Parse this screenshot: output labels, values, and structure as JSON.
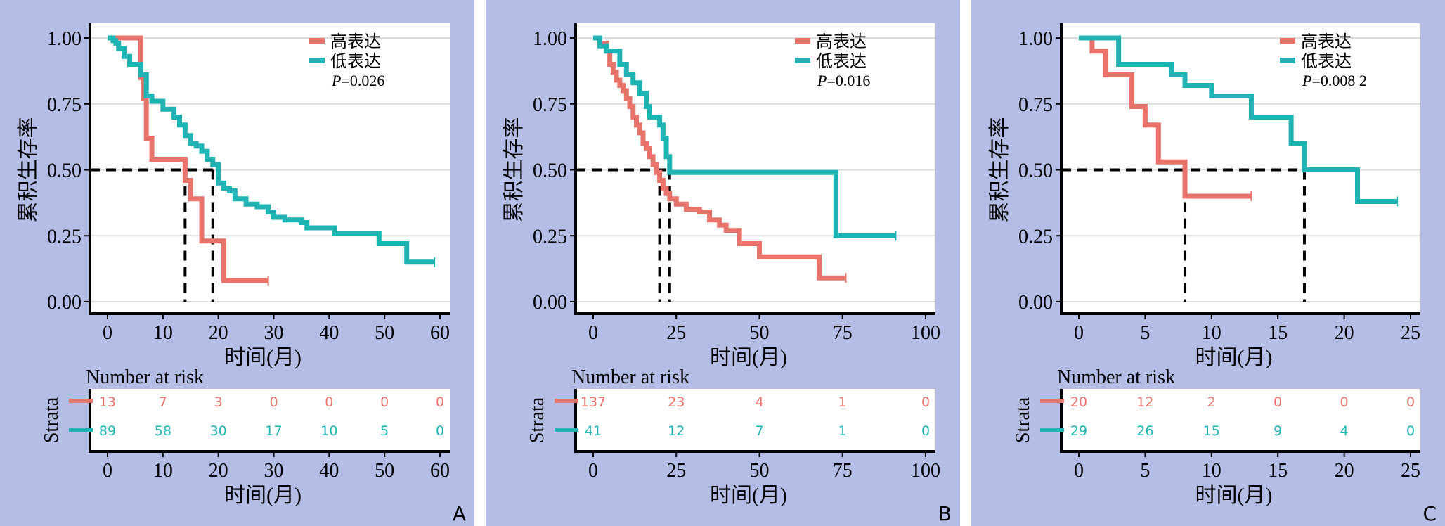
{
  "chart_data": [
    {
      "type": "line",
      "panel_label": "A",
      "ylabel": "累积生存率",
      "xlabel": "时间(月)",
      "xlim": [
        0,
        60
      ],
      "ylim": [
        0,
        1
      ],
      "xticks": [
        0,
        10,
        20,
        30,
        40,
        50,
        60
      ],
      "yticks": [
        "0.00",
        "0.25",
        "0.50",
        "0.75",
        "1.00"
      ],
      "legend": [
        "高表达",
        "低表达"
      ],
      "pvalue_prefix": "P",
      "pvalue_text": "=0.026",
      "median_lines": [
        14,
        19
      ],
      "series": [
        {
          "name": "高表达",
          "color": "#e8736b",
          "points": [
            [
              0,
              1
            ],
            [
              6,
              1
            ],
            [
              6,
              0.85
            ],
            [
              6.5,
              0.77
            ],
            [
              7,
              0.62
            ],
            [
              8,
              0.54
            ],
            [
              12,
              0.54
            ],
            [
              14,
              0.46
            ],
            [
              15,
              0.46
            ],
            [
              15,
              0.39
            ],
            [
              17,
              0.39
            ],
            [
              17,
              0.23
            ],
            [
              21,
              0.23
            ],
            [
              21,
              0.08
            ],
            [
              29,
              0.08
            ]
          ]
        },
        {
          "name": "低表达",
          "color": "#1fb3b3",
          "points": [
            [
              0,
              1
            ],
            [
              1,
              0.99
            ],
            [
              1.5,
              0.98
            ],
            [
              2,
              0.96
            ],
            [
              3,
              0.93
            ],
            [
              4,
              0.9
            ],
            [
              6,
              0.86
            ],
            [
              7,
              0.78
            ],
            [
              8,
              0.76
            ],
            [
              10,
              0.73
            ],
            [
              12,
              0.7
            ],
            [
              13,
              0.67
            ],
            [
              14,
              0.63
            ],
            [
              15,
              0.6
            ],
            [
              16,
              0.59
            ],
            [
              17,
              0.57
            ],
            [
              18,
              0.54
            ],
            [
              19,
              0.52
            ],
            [
              20,
              0.45
            ],
            [
              21,
              0.43
            ],
            [
              22,
              0.42
            ],
            [
              23,
              0.39
            ],
            [
              25,
              0.37
            ],
            [
              27,
              0.36
            ],
            [
              29,
              0.34
            ],
            [
              30,
              0.32
            ],
            [
              32,
              0.31
            ],
            [
              35,
              0.3
            ],
            [
              36,
              0.28
            ],
            [
              41,
              0.26
            ],
            [
              49,
              0.26
            ],
            [
              49,
              0.22
            ],
            [
              54,
              0.22
            ],
            [
              54,
              0.15
            ],
            [
              59,
              0.15
            ]
          ]
        }
      ],
      "risk_table": {
        "title": "Number at risk",
        "strata_label": "Strata",
        "x": [
          0,
          10,
          20,
          30,
          40,
          50,
          60
        ],
        "rows": [
          {
            "name": "高表达",
            "values": [
              "13",
              "7",
              "3",
              "0",
              "0",
              "0",
              "0"
            ]
          },
          {
            "name": "低表达",
            "values": [
              "89",
              "58",
              "30",
              "17",
              "10",
              "5",
              "0"
            ]
          }
        ]
      }
    },
    {
      "type": "line",
      "panel_label": "B",
      "ylabel": "累积生存率",
      "xlabel": "时间(月)",
      "xlim": [
        0,
        100
      ],
      "ylim": [
        0,
        1
      ],
      "xticks": [
        0,
        25,
        50,
        75,
        100
      ],
      "yticks": [
        "0.00",
        "0.25",
        "0.50",
        "0.75",
        "1.00"
      ],
      "legend": [
        "高表达",
        "低表达"
      ],
      "pvalue_prefix": "P",
      "pvalue_text": "=0.016",
      "median_lines": [
        20,
        23
      ],
      "series": [
        {
          "name": "高表达",
          "color": "#e8736b",
          "points": [
            [
              0,
              1
            ],
            [
              2,
              0.98
            ],
            [
              4,
              0.95
            ],
            [
              5,
              0.9
            ],
            [
              6,
              0.87
            ],
            [
              7,
              0.84
            ],
            [
              8,
              0.82
            ],
            [
              9,
              0.8
            ],
            [
              10,
              0.77
            ],
            [
              11,
              0.74
            ],
            [
              12,
              0.7
            ],
            [
              13,
              0.67
            ],
            [
              14,
              0.64
            ],
            [
              15,
              0.6
            ],
            [
              16,
              0.58
            ],
            [
              17,
              0.55
            ],
            [
              18,
              0.52
            ],
            [
              19,
              0.49
            ],
            [
              20,
              0.46
            ],
            [
              21,
              0.43
            ],
            [
              22,
              0.41
            ],
            [
              23,
              0.39
            ],
            [
              25,
              0.37
            ],
            [
              28,
              0.35
            ],
            [
              32,
              0.34
            ],
            [
              35,
              0.31
            ],
            [
              38,
              0.29
            ],
            [
              40,
              0.27
            ],
            [
              44,
              0.22
            ],
            [
              50,
              0.22
            ],
            [
              50,
              0.17
            ],
            [
              68,
              0.17
            ],
            [
              68,
              0.09
            ],
            [
              76,
              0.09
            ]
          ]
        },
        {
          "name": "低表达",
          "color": "#1fb3b3",
          "points": [
            [
              0,
              1
            ],
            [
              2,
              0.97
            ],
            [
              4,
              0.95
            ],
            [
              8,
              0.95
            ],
            [
              8,
              0.9
            ],
            [
              10,
              0.86
            ],
            [
              12,
              0.83
            ],
            [
              14,
              0.79
            ],
            [
              16,
              0.74
            ],
            [
              17,
              0.7
            ],
            [
              20,
              0.67
            ],
            [
              21,
              0.62
            ],
            [
              22,
              0.55
            ],
            [
              23,
              0.49
            ],
            [
              73,
              0.49
            ],
            [
              73,
              0.25
            ],
            [
              91,
              0.25
            ]
          ]
        }
      ],
      "risk_table": {
        "title": "Number at risk",
        "strata_label": "Strata",
        "x": [
          0,
          25,
          50,
          75,
          100
        ],
        "rows": [
          {
            "name": "高表达",
            "values": [
              "137",
              "23",
              "4",
              "1",
              "0"
            ]
          },
          {
            "name": "低表达",
            "values": [
              "41",
              "12",
              "7",
              "1",
              "0"
            ]
          }
        ]
      }
    },
    {
      "type": "line",
      "panel_label": "C",
      "ylabel": "累积生存率",
      "xlabel": "时间(月)",
      "xlim": [
        0,
        25
      ],
      "ylim": [
        0,
        1
      ],
      "xticks": [
        0,
        5,
        10,
        15,
        20,
        25
      ],
      "yticks": [
        "0.00",
        "0.25",
        "0.50",
        "0.75",
        "1.00"
      ],
      "legend": [
        "高表达",
        "低表达"
      ],
      "pvalue_prefix": "P",
      "pvalue_text": "=0.008 2",
      "median_lines": [
        8,
        17
      ],
      "series": [
        {
          "name": "高表达",
          "color": "#e8736b",
          "points": [
            [
              0,
              1
            ],
            [
              1,
              1
            ],
            [
              1,
              0.95
            ],
            [
              2,
              0.95
            ],
            [
              2,
              0.86
            ],
            [
              4,
              0.86
            ],
            [
              4,
              0.74
            ],
            [
              5,
              0.74
            ],
            [
              5,
              0.67
            ],
            [
              6,
              0.67
            ],
            [
              6,
              0.53
            ],
            [
              8,
              0.53
            ],
            [
              8,
              0.4
            ],
            [
              13,
              0.4
            ]
          ]
        },
        {
          "name": "低表达",
          "color": "#1fb3b3",
          "points": [
            [
              0,
              1
            ],
            [
              3,
              1
            ],
            [
              3,
              0.9
            ],
            [
              7,
              0.9
            ],
            [
              7,
              0.86
            ],
            [
              8,
              0.86
            ],
            [
              8,
              0.82
            ],
            [
              10,
              0.82
            ],
            [
              10,
              0.78
            ],
            [
              13,
              0.78
            ],
            [
              13,
              0.7
            ],
            [
              16,
              0.7
            ],
            [
              16,
              0.6
            ],
            [
              17,
              0.6
            ],
            [
              17,
              0.5
            ],
            [
              21,
              0.5
            ],
            [
              21,
              0.38
            ],
            [
              24,
              0.38
            ]
          ]
        }
      ],
      "risk_table": {
        "title": "Number at risk",
        "strata_label": "Strata",
        "x": [
          0,
          5,
          10,
          15,
          20,
          25
        ],
        "rows": [
          {
            "name": "高表达",
            "values": [
              "20",
              "12",
              "2",
              "0",
              "0",
              "0"
            ]
          },
          {
            "name": "低表达",
            "values": [
              "29",
              "26",
              "15",
              "9",
              "4",
              "0"
            ]
          }
        ]
      }
    }
  ]
}
